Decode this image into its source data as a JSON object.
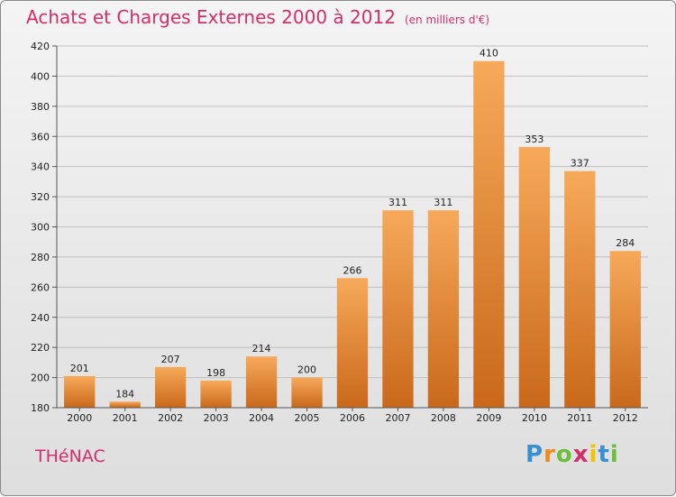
{
  "title": "Achats et Charges Externes 2000 à 2012",
  "unit": "(en milliers d'€)",
  "locality": "THéNAC",
  "brand": {
    "letters": [
      "P",
      "r",
      "o",
      "x",
      "i",
      "t",
      "i"
    ],
    "colors": [
      "#3a8fd1",
      "#f08a1c",
      "#6cbf3a",
      "#d22f6a",
      "#f2c400",
      "#3a8fd1",
      "#6cbf3a"
    ]
  },
  "colors": {
    "bar": "#f08a1c",
    "title": "#d22f6a"
  },
  "chart_data": {
    "type": "bar",
    "title": "Achats et Charges Externes 2000 à 2012",
    "xlabel": "",
    "ylabel": "",
    "categories": [
      "2000",
      "2001",
      "2002",
      "2003",
      "2004",
      "2005",
      "2006",
      "2007",
      "2008",
      "2009",
      "2010",
      "2011",
      "2012"
    ],
    "values": [
      201,
      184,
      207,
      198,
      214,
      200,
      266,
      311,
      311,
      410,
      353,
      337,
      284
    ],
    "ylim": [
      180,
      420
    ],
    "yticks": [
      180,
      200,
      220,
      240,
      260,
      280,
      300,
      320,
      340,
      360,
      380,
      400,
      420
    ],
    "grid": true,
    "data_labels": true
  }
}
